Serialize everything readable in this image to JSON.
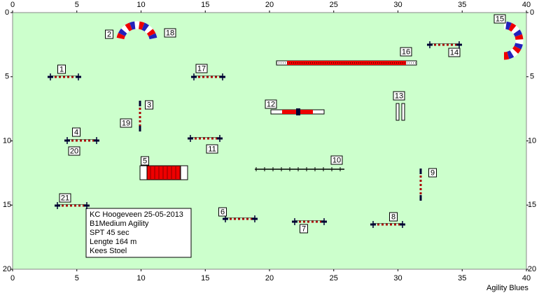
{
  "axes": {
    "x": [
      0,
      5,
      10,
      15,
      20,
      25,
      30,
      35,
      40
    ],
    "y": [
      0,
      5,
      10,
      15,
      20
    ]
  },
  "obstacle_numbers": [
    "1",
    "2",
    "3",
    "4",
    "5",
    "6",
    "7",
    "8",
    "9",
    "10",
    "11",
    "12",
    "13",
    "14",
    "15",
    "16",
    "17",
    "18",
    "19",
    "20",
    "21"
  ],
  "info": [
    "KC Hoogeveen 25-05-2013",
    "B1Medium Agility",
    "SPT 45 sec",
    "Lengte 164 m",
    "Kees Stoel"
  ],
  "footer": "Agility Blues"
}
